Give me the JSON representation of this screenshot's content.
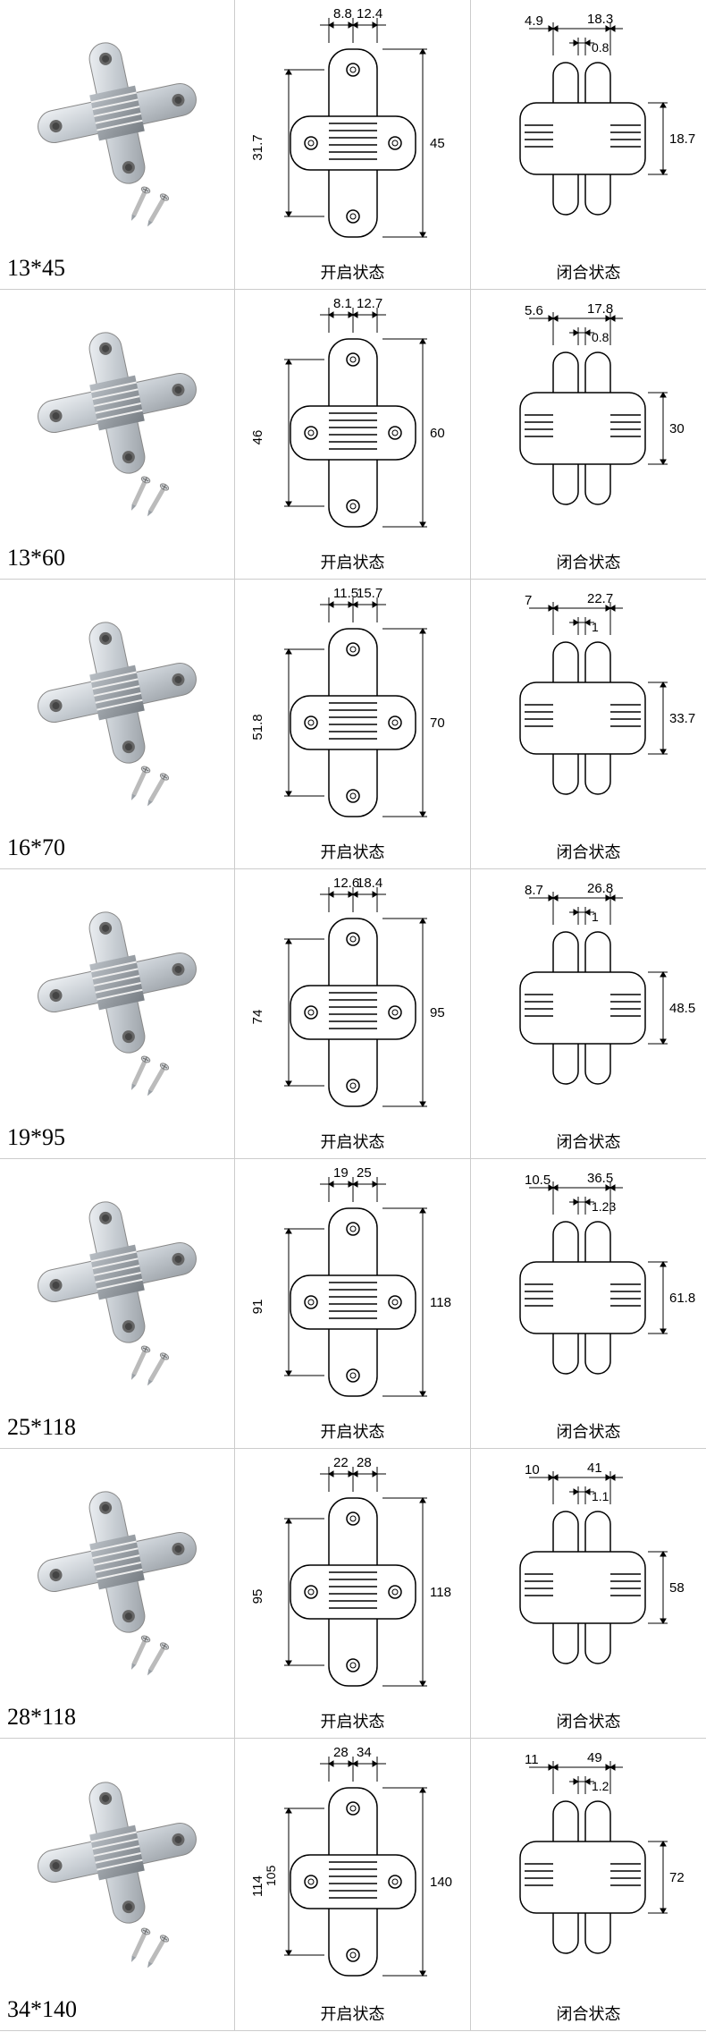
{
  "labels": {
    "open_state": "开启状态",
    "closed_state": "闭合状态"
  },
  "colors": {
    "hinge_light": "#d8dce0",
    "hinge_mid": "#b0b6bc",
    "hinge_dark": "#888e94",
    "line": "#000000"
  },
  "rows": [
    {
      "size": "13*45",
      "open": {
        "top_left": "8.8",
        "top_right": "12.4",
        "inner_h": "31.7",
        "outer_h": "45"
      },
      "closed": {
        "top_left": "4.9",
        "top_right": "18.3",
        "sub": "0.8",
        "h": "18.7"
      }
    },
    {
      "size": "13*60",
      "open": {
        "top_left": "8.1",
        "top_right": "12.7",
        "inner_h": "46",
        "outer_h": "60"
      },
      "closed": {
        "top_left": "5.6",
        "top_right": "17.8",
        "sub": "0.8",
        "h": "30"
      }
    },
    {
      "size": "16*70",
      "open": {
        "top_left": "11.5",
        "top_right": "15.7",
        "inner_h": "51.8",
        "outer_h": "70"
      },
      "closed": {
        "top_left": "7",
        "top_right": "22.7",
        "sub": "1",
        "h": "33.7"
      }
    },
    {
      "size": "19*95",
      "open": {
        "top_left": "12.6",
        "top_right": "18.4",
        "inner_h": "74",
        "outer_h": "95"
      },
      "closed": {
        "top_left": "8.7",
        "top_right": "26.8",
        "sub": "1",
        "h": "48.5"
      }
    },
    {
      "size": "25*118",
      "open": {
        "top_left": "19",
        "top_right": "25",
        "inner_h": "91",
        "outer_h": "118"
      },
      "closed": {
        "top_left": "10.5",
        "top_right": "36.5",
        "sub": "1.23",
        "h": "61.8"
      }
    },
    {
      "size": "28*118",
      "open": {
        "top_left": "22",
        "top_right": "28",
        "inner_h": "95",
        "outer_h": "118"
      },
      "closed": {
        "top_left": "10",
        "top_right": "41",
        "sub": "1.1",
        "h": "58"
      }
    },
    {
      "size": "34*140",
      "open": {
        "top_left": "28",
        "top_right": "34",
        "inner_h": "114",
        "inner_h2": "105",
        "outer_h": "140"
      },
      "closed": {
        "top_left": "11",
        "top_right": "49",
        "sub": "1.2",
        "h": "72"
      }
    }
  ]
}
